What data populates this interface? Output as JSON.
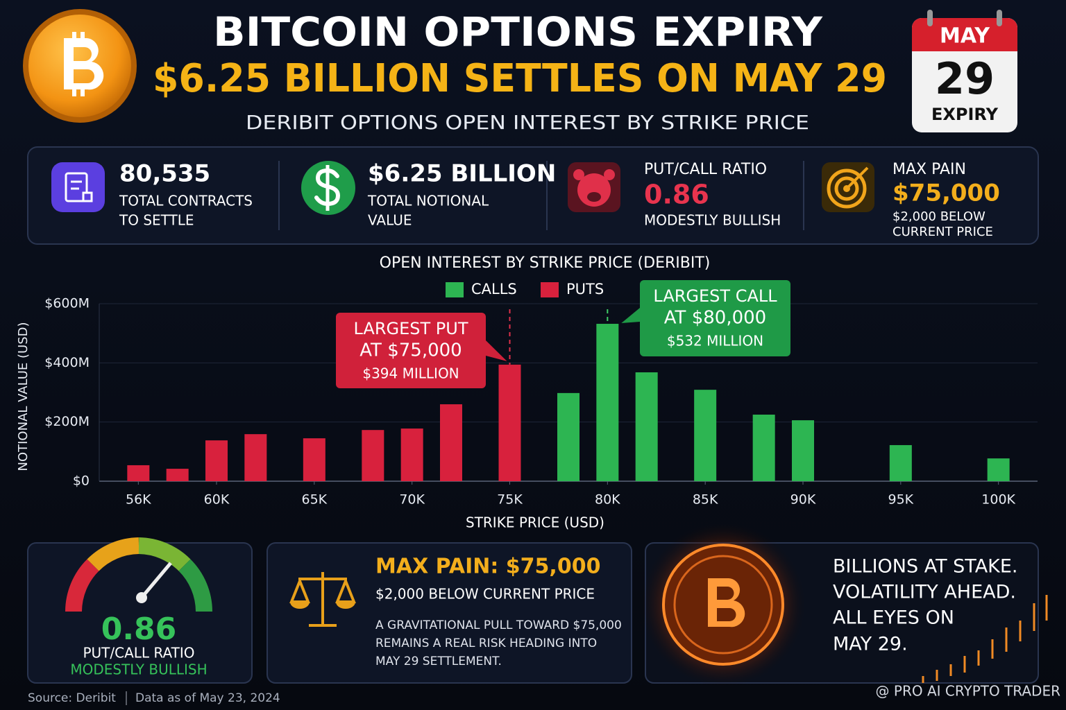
{
  "header": {
    "title": "BITCOIN OPTIONS EXPIRY",
    "headline": "$6.25 BILLION SETTLES ON MAY 29",
    "subtitle": "DERIBIT OPTIONS OPEN INTEREST BY STRIKE PRICE"
  },
  "calendar": {
    "month": "MAY",
    "day": "29",
    "label": "EXPIRY"
  },
  "stats": [
    {
      "value": "80,535",
      "label": [
        "TOTAL CONTRACTS",
        "TO SETTLE"
      ]
    },
    {
      "value": "$6.25 BILLION",
      "label": [
        "TOTAL NOTIONAL",
        "VALUE"
      ]
    },
    {
      "title": "PUT/CALL RATIO",
      "value": "0.86",
      "label": [
        "MODESTLY BULLISH"
      ]
    },
    {
      "title": "MAX PAIN",
      "value": "$75,000",
      "label": [
        "$2,000 BELOW",
        "CURRENT PRICE"
      ]
    }
  ],
  "chart_data": {
    "type": "bar",
    "title": "OPEN INTEREST BY STRIKE PRICE (DERIBIT)",
    "x_label": "STRIKE PRICE (USD)",
    "y_label": "NOTIONAL VALUE (USD)",
    "x": [
      56000,
      58000,
      60000,
      62000,
      65000,
      68000,
      70000,
      72000,
      75000,
      78000,
      80000,
      82000,
      85000,
      88000,
      90000,
      95000,
      100000
    ],
    "series": [
      {
        "name": "CALLS",
        "color": "#2db552",
        "values": [
          null,
          null,
          null,
          null,
          null,
          null,
          null,
          null,
          null,
          298000000,
          532000000,
          368000000,
          309000000,
          225000000,
          206000000,
          122000000,
          77000000
        ]
      },
      {
        "name": "PUTS",
        "color": "#d8213d",
        "values": [
          54000000,
          42000000,
          138000000,
          159000000,
          145000000,
          173000000,
          178000000,
          260000000,
          394000000,
          null,
          null,
          null,
          null,
          null,
          null,
          null,
          null
        ]
      }
    ],
    "xlim": [
      54000,
      102000
    ],
    "xticks": [
      {
        "value": 56000,
        "label": "56K"
      },
      {
        "value": 60000,
        "label": "60K"
      },
      {
        "value": 65000,
        "label": "65K"
      },
      {
        "value": 70000,
        "label": "70K"
      },
      {
        "value": 75000,
        "label": "75K"
      },
      {
        "value": 80000,
        "label": "80K"
      },
      {
        "value": 85000,
        "label": "85K"
      },
      {
        "value": 90000,
        "label": "90K"
      },
      {
        "value": 95000,
        "label": "95K"
      },
      {
        "value": 100000,
        "label": "100K"
      }
    ],
    "ylim": [
      0,
      600000000
    ],
    "yticks": [
      {
        "value": 0,
        "label": "$0"
      },
      {
        "value": 200000000,
        "label": "$200M"
      },
      {
        "value": 400000000,
        "label": "$400M"
      },
      {
        "value": 600000000,
        "label": "$600M"
      }
    ],
    "grid": true,
    "annotations": [
      {
        "lines": [
          "LARGEST PUT",
          "AT $75,000",
          "$394 MILLION"
        ]
      },
      {
        "lines": [
          "LARGEST CALL",
          "AT $80,000",
          "$532 MILLION"
        ]
      }
    ]
  },
  "gauge": {
    "value": "0.86",
    "label": "PUT/CALL RATIO",
    "sentiment": "MODESTLY BULLISH"
  },
  "max_pain": {
    "title": "MAX PAIN: $75,000",
    "subtitle": "$2,000 BELOW CURRENT PRICE",
    "body": [
      "A GRAVITATIONAL PULL TOWARD $75,000",
      "REMAINS A REAL RISK HEADING INTO",
      "MAY 29 SETTLEMENT."
    ]
  },
  "tagline": [
    "BILLIONS AT STAKE.",
    "VOLATILITY AHEAD.",
    "ALL EYES ON",
    "MAY 29."
  ],
  "footer": {
    "source": "Source: Deribit",
    "date": "Data as of May 23, 2024",
    "watermark": "@ PRO AI CRYPTO TRADER"
  }
}
